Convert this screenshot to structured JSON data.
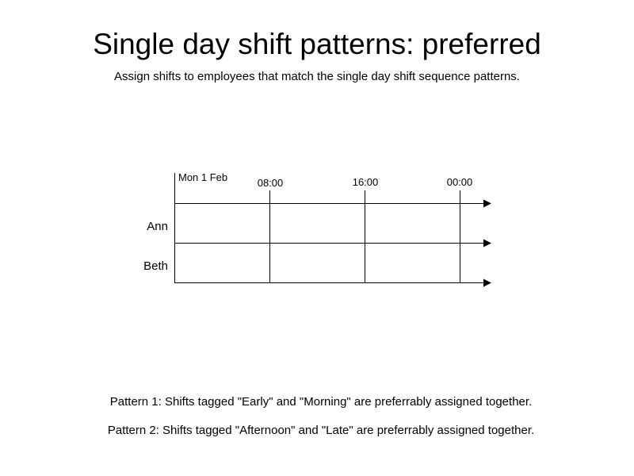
{
  "header": {
    "title": "Single day shift patterns: preferred",
    "subtitle": "Assign shifts to employees that match the single day shift sequence patterns."
  },
  "timeline": {
    "date_label": "Mon 1 Feb",
    "time_labels": [
      "08:00",
      "16:00",
      "00:00"
    ],
    "employees": [
      "Ann",
      "Beth"
    ]
  },
  "patterns": [
    "Pattern 1: Shifts tagged \"Early\" and \"Morning\" are preferrably assigned together.",
    "Pattern 2: Shifts tagged \"Afternoon\" and \"Late\" are preferrably assigned together."
  ]
}
